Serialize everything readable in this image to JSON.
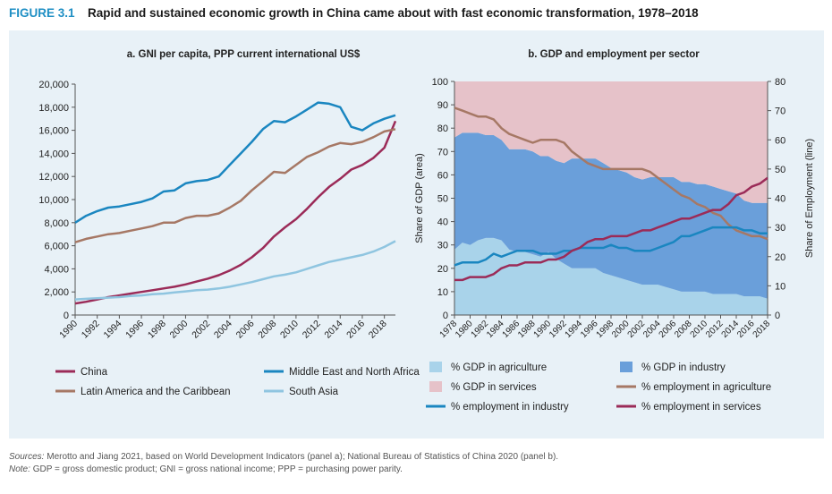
{
  "figure": {
    "label": "FIGURE 3.1",
    "title": "Rapid and sustained economic growth in China came about with fast economic transformation, 1978–2018"
  },
  "footer": {
    "sources_label": "Sources:",
    "sources_text": "Merotto and Jiang 2021, based on World Development Indicators (panel a); National Bureau of Statistics of China 2020 (panel b).",
    "note_label": "Note:",
    "note_text": "GDP = gross domestic product; GNI = gross national income; PPP = purchasing power parity."
  },
  "chart_data": [
    {
      "type": "line",
      "title": "a. GNI per capita, PPP current international US$",
      "xlabel": "",
      "ylabel": "",
      "xlim": [
        1990,
        2019
      ],
      "ylim": [
        0,
        20000
      ],
      "x_ticks": [
        1990,
        1992,
        1994,
        1996,
        1998,
        2000,
        2002,
        2004,
        2006,
        2008,
        2010,
        2012,
        2014,
        2016,
        2018
      ],
      "y_ticks": [
        0,
        2000,
        4000,
        6000,
        8000,
        10000,
        12000,
        14000,
        16000,
        18000,
        20000
      ],
      "y_tick_labels": [
        "0",
        "2,000",
        "4,000",
        "6,000",
        "8,000",
        "10,000",
        "12,000",
        "14,000",
        "16,000",
        "18,000",
        "20,000"
      ],
      "grid": false,
      "legend_position": "bottom",
      "x": [
        1990,
        1991,
        1992,
        1993,
        1994,
        1995,
        1996,
        1997,
        1998,
        1999,
        2000,
        2001,
        2002,
        2003,
        2004,
        2005,
        2006,
        2007,
        2008,
        2009,
        2010,
        2011,
        2012,
        2013,
        2014,
        2015,
        2016,
        2017,
        2018,
        2019
      ],
      "series": [
        {
          "name": "China",
          "color": "#9b2b58",
          "values": [
            1000,
            1150,
            1350,
            1550,
            1700,
            1850,
            2000,
            2150,
            2300,
            2450,
            2650,
            2900,
            3150,
            3450,
            3850,
            4350,
            5000,
            5800,
            6800,
            7600,
            8300,
            9200,
            10200,
            11100,
            11800,
            12600,
            13000,
            13600,
            14500,
            16800
          ]
        },
        {
          "name": "Middle East and North Africa",
          "color": "#1a86c0",
          "values": [
            8000,
            8600,
            9000,
            9300,
            9400,
            9600,
            9800,
            10100,
            10700,
            10800,
            11400,
            11600,
            11700,
            12000,
            13000,
            14000,
            15000,
            16100,
            16800,
            16700,
            17200,
            17800,
            18400,
            18300,
            18000,
            16300,
            16000,
            16600,
            17000,
            17300
          ]
        },
        {
          "name": "Latin America and the Caribbean",
          "color": "#a67865",
          "values": [
            6300,
            6600,
            6800,
            7000,
            7100,
            7300,
            7500,
            7700,
            8000,
            8000,
            8400,
            8600,
            8600,
            8800,
            9300,
            9900,
            10800,
            11600,
            12400,
            12300,
            13000,
            13700,
            14100,
            14600,
            14900,
            14800,
            15000,
            15400,
            15900,
            16100
          ]
        },
        {
          "name": "South Asia",
          "color": "#8fc5e0",
          "values": [
            1350,
            1400,
            1450,
            1500,
            1550,
            1650,
            1700,
            1800,
            1850,
            1950,
            2050,
            2150,
            2200,
            2300,
            2450,
            2650,
            2850,
            3100,
            3350,
            3500,
            3700,
            4000,
            4300,
            4600,
            4800,
            5000,
            5200,
            5500,
            5900,
            6400
          ]
        }
      ]
    },
    {
      "type": "area",
      "title": "b. GDP and employment per sector",
      "ylabel": "Share of GDP (area)",
      "y2label": "Share of Employment (line)",
      "xlim": [
        1978,
        2018
      ],
      "ylim": [
        0,
        100
      ],
      "y2lim": [
        0,
        80
      ],
      "y_ticks": [
        0,
        10,
        20,
        30,
        40,
        50,
        60,
        70,
        80,
        90,
        100
      ],
      "y2_ticks": [
        0,
        10,
        20,
        30,
        40,
        50,
        60,
        70,
        80
      ],
      "x_ticks": [
        1978,
        1980,
        1982,
        1984,
        1986,
        1988,
        1990,
        1992,
        1994,
        1996,
        1998,
        2000,
        2002,
        2004,
        2006,
        2008,
        2010,
        2012,
        2014,
        2016,
        2018
      ],
      "legend_position": "bottom",
      "x": [
        1978,
        1979,
        1980,
        1981,
        1982,
        1983,
        1984,
        1985,
        1986,
        1987,
        1988,
        1989,
        1990,
        1991,
        1992,
        1993,
        1994,
        1995,
        1996,
        1997,
        1998,
        1999,
        2000,
        2001,
        2002,
        2003,
        2004,
        2005,
        2006,
        2007,
        2008,
        2009,
        2010,
        2011,
        2012,
        2013,
        2014,
        2015,
        2016,
        2017,
        2018
      ],
      "areas": [
        {
          "name": "% GDP in agriculture",
          "color": "#a9d3ea",
          "values": [
            28,
            31,
            30,
            32,
            33,
            33,
            32,
            28,
            27,
            27,
            26,
            25,
            27,
            24,
            22,
            20,
            20,
            20,
            20,
            18,
            17,
            16,
            15,
            14,
            13,
            13,
            13,
            12,
            11,
            10,
            10,
            10,
            10,
            9,
            9,
            9,
            9,
            8,
            8,
            8,
            7
          ]
        },
        {
          "name": "% GDP in industry",
          "color": "#6a9fda",
          "values": [
            48,
            47,
            48,
            46,
            44,
            44,
            43,
            43,
            44,
            44,
            44,
            43,
            41,
            42,
            43,
            47,
            47,
            47,
            47,
            47,
            46,
            46,
            46,
            45,
            45,
            46,
            46,
            47,
            48,
            47,
            47,
            46,
            46,
            46,
            45,
            44,
            43,
            41,
            40,
            40,
            41
          ]
        },
        {
          "name": "% GDP in services",
          "color": "#e6c2c9",
          "values": [
            24,
            22,
            22,
            22,
            23,
            23,
            25,
            29,
            29,
            29,
            30,
            32,
            32,
            34,
            35,
            33,
            33,
            33,
            33,
            35,
            37,
            38,
            39,
            41,
            42,
            41,
            41,
            41,
            41,
            43,
            43,
            44,
            44,
            45,
            46,
            47,
            48,
            51,
            52,
            52,
            52
          ]
        }
      ],
      "lines": [
        {
          "name": "% employment in agriculture",
          "color": "#a67865",
          "values": [
            71,
            70,
            69,
            68,
            68,
            67,
            64,
            62,
            61,
            60,
            59,
            60,
            60,
            60,
            59,
            56,
            54,
            52,
            51,
            50,
            50,
            50,
            50,
            50,
            50,
            49,
            47,
            45,
            43,
            41,
            40,
            38,
            37,
            35,
            34,
            31,
            29,
            28,
            27,
            27,
            26
          ]
        },
        {
          "name": "% employment in industry",
          "color": "#1a86c0",
          "values": [
            17,
            18,
            18,
            18,
            19,
            21,
            20,
            21,
            22,
            22,
            22,
            21,
            21,
            21,
            22,
            22,
            23,
            23,
            23,
            23,
            24,
            23,
            23,
            22,
            22,
            22,
            23,
            24,
            25,
            27,
            27,
            28,
            29,
            30,
            30,
            30,
            30,
            29,
            29,
            28,
            28
          ]
        },
        {
          "name": "% employment in services",
          "color": "#9b2b58",
          "values": [
            12,
            12,
            13,
            13,
            13,
            14,
            16,
            17,
            17,
            18,
            18,
            18,
            19,
            19,
            20,
            22,
            23,
            25,
            26,
            26,
            27,
            27,
            27,
            28,
            29,
            29,
            30,
            31,
            32,
            33,
            33,
            34,
            35,
            36,
            36,
            38,
            41,
            42,
            44,
            45,
            47
          ]
        }
      ]
    }
  ]
}
